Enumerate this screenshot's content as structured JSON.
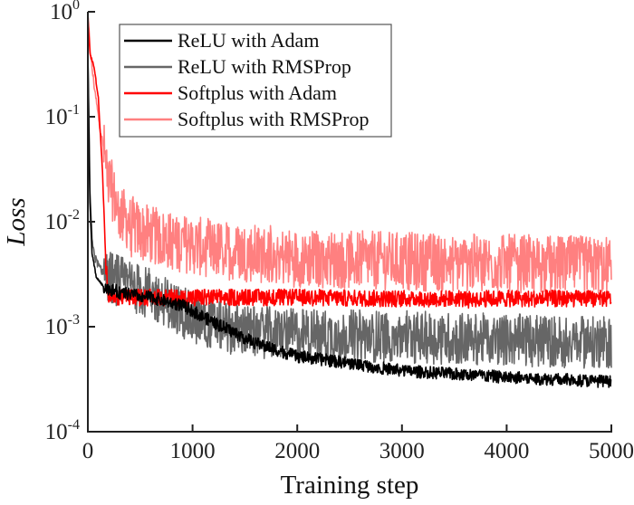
{
  "chart_data": {
    "type": "line",
    "title": "",
    "xlabel": "Training step",
    "ylabel": "Loss",
    "xlim": [
      0,
      5000
    ],
    "ylim": [
      0.0001,
      1
    ],
    "yscale": "log",
    "grid": false,
    "legend_position": "top-left",
    "x_ticks": [
      {
        "value": 0,
        "label": "0"
      },
      {
        "value": 1000,
        "label": "1000"
      },
      {
        "value": 2000,
        "label": "2000"
      },
      {
        "value": 3000,
        "label": "3000"
      },
      {
        "value": 4000,
        "label": "4000"
      },
      {
        "value": 5000,
        "label": "5000"
      }
    ],
    "y_ticks": [
      {
        "value": 1,
        "base": "10",
        "exp": "0"
      },
      {
        "value": 0.1,
        "base": "10",
        "exp": "-1"
      },
      {
        "value": 0.01,
        "base": "10",
        "exp": "-2"
      },
      {
        "value": 0.001,
        "base": "10",
        "exp": "-3"
      },
      {
        "value": 0.0001,
        "base": "10",
        "exp": "-4"
      }
    ],
    "series": [
      {
        "name": "Softplus with RMSProp",
        "color": "#ff8080",
        "noise_decades": 0.28,
        "x": [
          0,
          30,
          60,
          100,
          150,
          200,
          300,
          500,
          800,
          1200,
          2000,
          3000,
          4000,
          5000
        ],
        "y": [
          0.9,
          0.35,
          0.2,
          0.1,
          0.05,
          0.025,
          0.012,
          0.008,
          0.0065,
          0.0055,
          0.0045,
          0.0042,
          0.004,
          0.0038
        ]
      },
      {
        "name": "ReLU with RMSProp",
        "color": "#666666",
        "noise_decades": 0.25,
        "x": [
          0,
          10,
          20,
          40,
          70,
          120,
          200,
          400,
          700,
          1000,
          1500,
          2000,
          3000,
          4000,
          5000
        ],
        "y": [
          0.4,
          0.1,
          0.02,
          0.007,
          0.0045,
          0.0035,
          0.003,
          0.0025,
          0.0018,
          0.0012,
          0.0009,
          0.00085,
          0.0008,
          0.00075,
          0.0007
        ]
      },
      {
        "name": "Softplus with Adam",
        "color": "#ff0000",
        "noise_decades": 0.08,
        "x": [
          0,
          20,
          60,
          100,
          140,
          170,
          200,
          300,
          1000,
          2000,
          3000,
          4000,
          5000
        ],
        "y": [
          0.9,
          0.4,
          0.3,
          0.15,
          0.03,
          0.004,
          0.002,
          0.0019,
          0.0019,
          0.0019,
          0.00185,
          0.00185,
          0.00185
        ]
      },
      {
        "name": "ReLU with Adam",
        "color": "#000000",
        "noise_decades": 0.06,
        "x": [
          0,
          10,
          20,
          40,
          80,
          150,
          300,
          600,
          900,
          1200,
          1600,
          2000,
          2500,
          3000,
          4000,
          5000
        ],
        "y": [
          0.4,
          0.08,
          0.015,
          0.005,
          0.003,
          0.0024,
          0.0021,
          0.0019,
          0.0016,
          0.0011,
          0.0007,
          0.00052,
          0.00045,
          0.00038,
          0.00033,
          0.0003
        ]
      }
    ]
  },
  "legend": [
    {
      "label": "ReLU with Adam",
      "color": "#000000"
    },
    {
      "label": "ReLU with RMSProp",
      "color": "#666666"
    },
    {
      "label": "Softplus with Adam",
      "color": "#ff0000"
    },
    {
      "label": "Softplus with RMSProp",
      "color": "#ff8080"
    }
  ]
}
